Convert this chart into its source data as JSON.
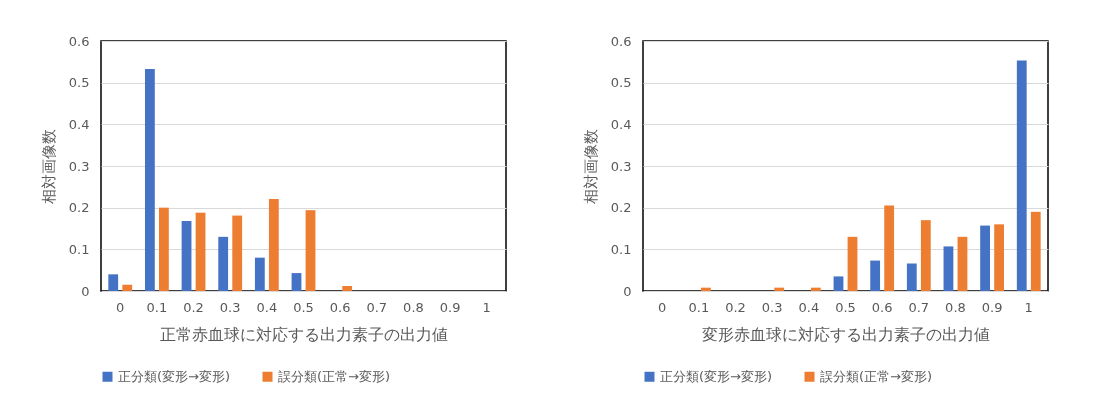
{
  "chart_data": [
    {
      "type": "bar",
      "xlabel": "正常赤血球に対応する出力素子の出力値",
      "ylabel": "相対画像数",
      "categories": [
        "0",
        "0.1",
        "0.2",
        "0.3",
        "0.4",
        "0.5",
        "0.6",
        "0.7",
        "0.8",
        "0.9",
        "1"
      ],
      "ylim": [
        0,
        0.6
      ],
      "yticks": [
        0,
        0.1,
        0.2,
        0.3,
        0.4,
        0.5,
        0.6
      ],
      "grid": "y",
      "legend": "bottom",
      "series": [
        {
          "name": "正分類(変形→変形)",
          "color": "#4472c4",
          "values": [
            0.04,
            0.533,
            0.168,
            0.13,
            0.08,
            0.043,
            0,
            0,
            0,
            0,
            0
          ]
        },
        {
          "name": "誤分類(正常→変形)",
          "color": "#ed7d31",
          "values": [
            0.015,
            0.2,
            0.188,
            0.181,
            0.221,
            0.194,
            0.012,
            0,
            0,
            0,
            0
          ]
        }
      ]
    },
    {
      "type": "bar",
      "xlabel": "変形赤血球に対応する出力素子の出力値",
      "ylabel": "相対画像数",
      "categories": [
        "0",
        "0.1",
        "0.2",
        "0.3",
        "0.4",
        "0.5",
        "0.6",
        "0.7",
        "0.8",
        "0.9",
        "1"
      ],
      "ylim": [
        0,
        0.6
      ],
      "yticks": [
        0,
        0.1,
        0.2,
        0.3,
        0.4,
        0.5,
        0.6
      ],
      "grid": "y",
      "legend": "bottom",
      "series": [
        {
          "name": "正分類(変形→変形)",
          "color": "#4472c4",
          "values": [
            0,
            0,
            0,
            0,
            0,
            0.035,
            0.073,
            0.066,
            0.107,
            0.157,
            0.553
          ]
        },
        {
          "name": "誤分類(正常→変形)",
          "color": "#ed7d31",
          "values": [
            0,
            0.008,
            0,
            0.008,
            0.008,
            0.13,
            0.205,
            0.17,
            0.13,
            0.16,
            0.19
          ]
        }
      ]
    }
  ]
}
